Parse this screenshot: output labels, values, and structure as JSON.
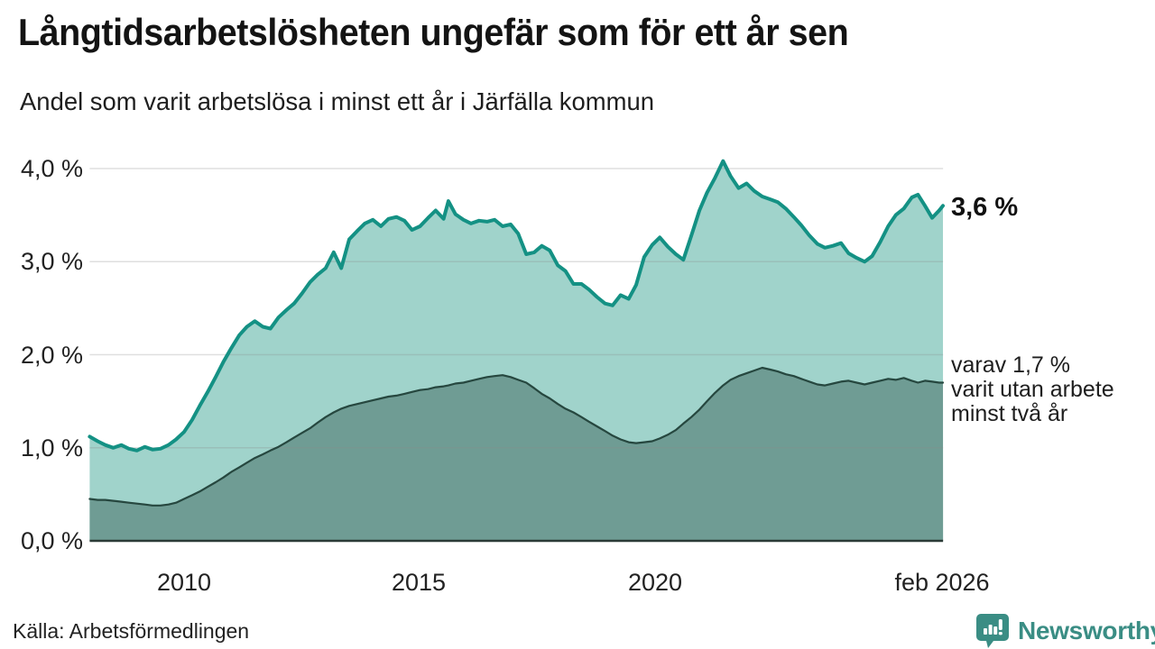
{
  "chart_data": {
    "type": "area",
    "title": "Långtidsarbetslösheten ungefär som för ett år sen",
    "subtitle": "Andel som varit arbetslösa i minst ett år i Järfälla kommun",
    "x_range": [
      2008.0,
      2026.083
    ],
    "ylim": [
      0,
      4.1
    ],
    "grid": true,
    "y_axis": {
      "values": [
        4,
        3,
        2,
        1,
        0
      ],
      "tick_labels": [
        "4,0 %",
        "3,0 %",
        "2,0 %",
        "1,0 %",
        "0,0 %"
      ]
    },
    "x_axis": {
      "ticks": [
        {
          "t": 2010,
          "label": "2010"
        },
        {
          "t": 2015,
          "label": "2015"
        },
        {
          "t": 2020,
          "label": "2020"
        },
        {
          "t": 2026.083,
          "label": "feb 2026"
        }
      ]
    },
    "x": [
      2008.0,
      2008.17,
      2008.33,
      2008.5,
      2008.67,
      2008.83,
      2009.0,
      2009.17,
      2009.33,
      2009.5,
      2009.67,
      2009.83,
      2010.0,
      2010.17,
      2010.33,
      2010.5,
      2010.67,
      2010.83,
      2011.0,
      2011.17,
      2011.33,
      2011.5,
      2011.67,
      2011.83,
      2012.0,
      2012.17,
      2012.33,
      2012.5,
      2012.67,
      2012.83,
      2013.0,
      2013.17,
      2013.33,
      2013.5,
      2013.67,
      2013.83,
      2014.0,
      2014.17,
      2014.33,
      2014.5,
      2014.67,
      2014.83,
      2015.0,
      2015.17,
      2015.33,
      2015.5,
      2015.6,
      2015.75,
      2015.92,
      2016.08,
      2016.25,
      2016.42,
      2016.58,
      2016.75,
      2016.92,
      2017.08,
      2017.25,
      2017.42,
      2017.58,
      2017.75,
      2017.92,
      2018.08,
      2018.25,
      2018.42,
      2018.58,
      2018.75,
      2018.92,
      2019.08,
      2019.25,
      2019.42,
      2019.58,
      2019.75,
      2019.92,
      2020.08,
      2020.25,
      2020.42,
      2020.58,
      2020.75,
      2020.92,
      2021.08,
      2021.25,
      2021.42,
      2021.58,
      2021.75,
      2021.92,
      2022.08,
      2022.25,
      2022.42,
      2022.58,
      2022.75,
      2022.92,
      2023.08,
      2023.25,
      2023.42,
      2023.58,
      2023.75,
      2023.92,
      2024.08,
      2024.25,
      2024.42,
      2024.58,
      2024.75,
      2024.92,
      2025.08,
      2025.25,
      2025.42,
      2025.55,
      2025.7,
      2025.85,
      2026.0,
      2026.08
    ],
    "series": [
      {
        "name": "Andel arbetslösa minst ett år",
        "line_color": "#149184",
        "fill_color": "#a0d3cb",
        "line_width": 4,
        "values": [
          1.12,
          1.07,
          1.03,
          1.0,
          1.03,
          0.99,
          0.97,
          1.01,
          0.98,
          0.99,
          1.03,
          1.09,
          1.17,
          1.3,
          1.45,
          1.6,
          1.76,
          1.92,
          2.07,
          2.21,
          2.3,
          2.36,
          2.3,
          2.28,
          2.4,
          2.48,
          2.55,
          2.66,
          2.78,
          2.86,
          2.93,
          3.1,
          2.93,
          3.24,
          3.33,
          3.41,
          3.45,
          3.38,
          3.46,
          3.48,
          3.44,
          3.34,
          3.38,
          3.47,
          3.55,
          3.46,
          3.65,
          3.51,
          3.45,
          3.41,
          3.44,
          3.43,
          3.45,
          3.38,
          3.4,
          3.3,
          3.08,
          3.1,
          3.17,
          3.12,
          2.96,
          2.9,
          2.76,
          2.76,
          2.7,
          2.62,
          2.55,
          2.53,
          2.64,
          2.6,
          2.75,
          3.05,
          3.18,
          3.26,
          3.16,
          3.08,
          3.02,
          3.28,
          3.55,
          3.74,
          3.9,
          4.08,
          3.92,
          3.79,
          3.84,
          3.76,
          3.7,
          3.67,
          3.64,
          3.57,
          3.48,
          3.39,
          3.28,
          3.19,
          3.15,
          3.17,
          3.2,
          3.09,
          3.04,
          3.0,
          3.06,
          3.21,
          3.38,
          3.5,
          3.57,
          3.69,
          3.72,
          3.6,
          3.47,
          3.55,
          3.6
        ]
      },
      {
        "name": "varav arbetslösa minst två år",
        "line_color": "#26473f",
        "fill_color": "#6f9c94",
        "line_width": 2.2,
        "values": [
          0.45,
          0.44,
          0.44,
          0.43,
          0.42,
          0.41,
          0.4,
          0.39,
          0.38,
          0.38,
          0.39,
          0.41,
          0.45,
          0.49,
          0.53,
          0.58,
          0.63,
          0.68,
          0.74,
          0.79,
          0.84,
          0.89,
          0.93,
          0.97,
          1.01,
          1.06,
          1.11,
          1.16,
          1.21,
          1.27,
          1.33,
          1.38,
          1.42,
          1.45,
          1.47,
          1.49,
          1.51,
          1.53,
          1.55,
          1.56,
          1.58,
          1.6,
          1.62,
          1.63,
          1.65,
          1.66,
          1.67,
          1.69,
          1.7,
          1.72,
          1.74,
          1.76,
          1.77,
          1.78,
          1.76,
          1.73,
          1.7,
          1.64,
          1.58,
          1.53,
          1.47,
          1.42,
          1.38,
          1.33,
          1.28,
          1.23,
          1.18,
          1.13,
          1.09,
          1.06,
          1.05,
          1.06,
          1.07,
          1.1,
          1.14,
          1.19,
          1.26,
          1.33,
          1.41,
          1.5,
          1.59,
          1.67,
          1.73,
          1.77,
          1.8,
          1.83,
          1.86,
          1.84,
          1.82,
          1.79,
          1.77,
          1.74,
          1.71,
          1.68,
          1.67,
          1.69,
          1.71,
          1.72,
          1.7,
          1.68,
          1.7,
          1.72,
          1.74,
          1.73,
          1.75,
          1.72,
          1.7,
          1.72,
          1.71,
          1.7,
          1.7
        ]
      }
    ],
    "annotations": {
      "latest_total_label": "3,6 %",
      "two_year_lines": [
        "varav 1,7 %",
        "varit utan arbete",
        "minst två år"
      ]
    },
    "style": {
      "grid_color": "#8c8c8c",
      "axis_color": "#2b3b37",
      "background": "#ffffff"
    }
  },
  "footer": {
    "source": "Källa: Arbetsförmedlingen",
    "brand": "Newsworthy",
    "brand_color": "#3a8d84"
  }
}
